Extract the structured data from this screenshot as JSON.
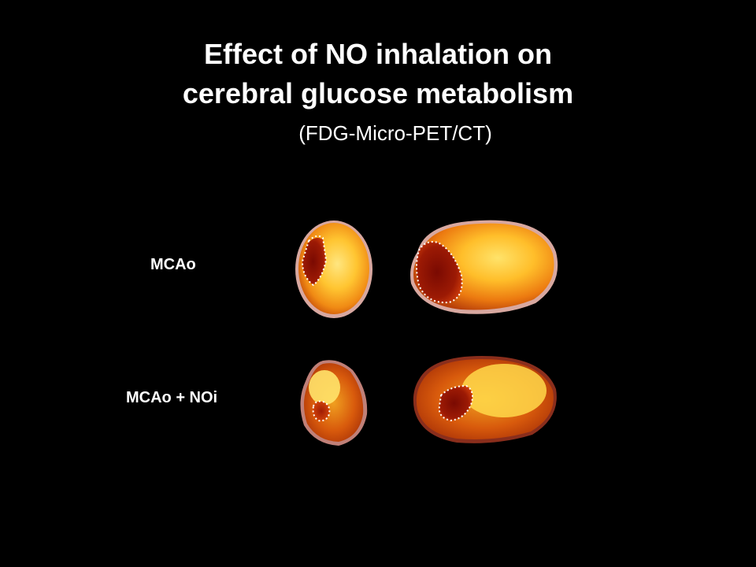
{
  "slide": {
    "title_line1": "Effect of NO inhalation on",
    "title_line2": "cerebral glucose metabolism",
    "subtitle": "(FDG-Micro-PET/CT)"
  },
  "rows": [
    {
      "label": "MCAo"
    },
    {
      "label": "MCAo + NOi"
    }
  ],
  "colors": {
    "background": "#000000",
    "text": "#ffffff",
    "high_uptake": "#ffd84a",
    "medium_uptake": "#f08a14",
    "low_uptake_lesion": "#8e1404",
    "rim": "#d8a8a0"
  }
}
